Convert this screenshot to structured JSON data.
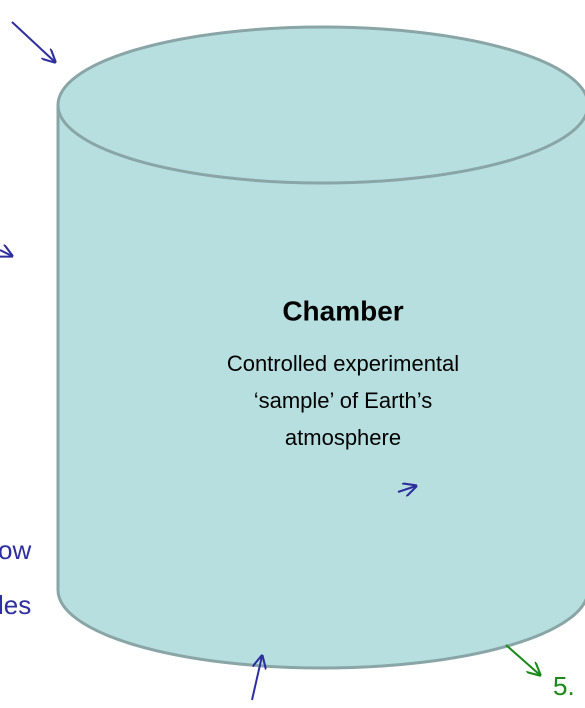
{
  "chamber": {
    "title": "Chamber",
    "description": [
      "Controlled experimental",
      "‘sample’ of Earth’s",
      "atmosphere"
    ]
  },
  "fragments": {
    "left_upper": "ow",
    "left_lower": "les",
    "right_bottom": "5."
  }
}
